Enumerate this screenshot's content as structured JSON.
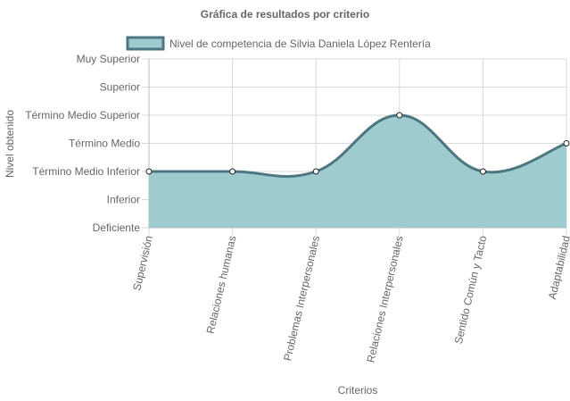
{
  "chart_data": {
    "type": "area",
    "title": "Gráfica de resultados por criterio",
    "xlabel": "Criterios",
    "ylabel": "Nivel obtenido",
    "y_levels": [
      "Deficiente",
      "Inferior",
      "Término Medio Inferior",
      "Término Medio",
      "Término Medio Superior",
      "Superior",
      "Muy Superior"
    ],
    "categories": [
      "Supervisión",
      "Relaciones humanas",
      "Problemas Interpersonales",
      "Relaciones Interpersonales",
      "Sentido Común y Tacto",
      "Adaptabilidad"
    ],
    "series": [
      {
        "name": "Nivel de competencia de Silvia Daniela López Rentería",
        "values": [
          2,
          2,
          2,
          4,
          2,
          3
        ]
      }
    ],
    "ylim": [
      0,
      6
    ],
    "grid": true,
    "legend": "top",
    "colors": {
      "fill": "#9ecbcd",
      "line": "#4d7780",
      "grid": "#d9d9d9",
      "text": "#666666"
    }
  }
}
